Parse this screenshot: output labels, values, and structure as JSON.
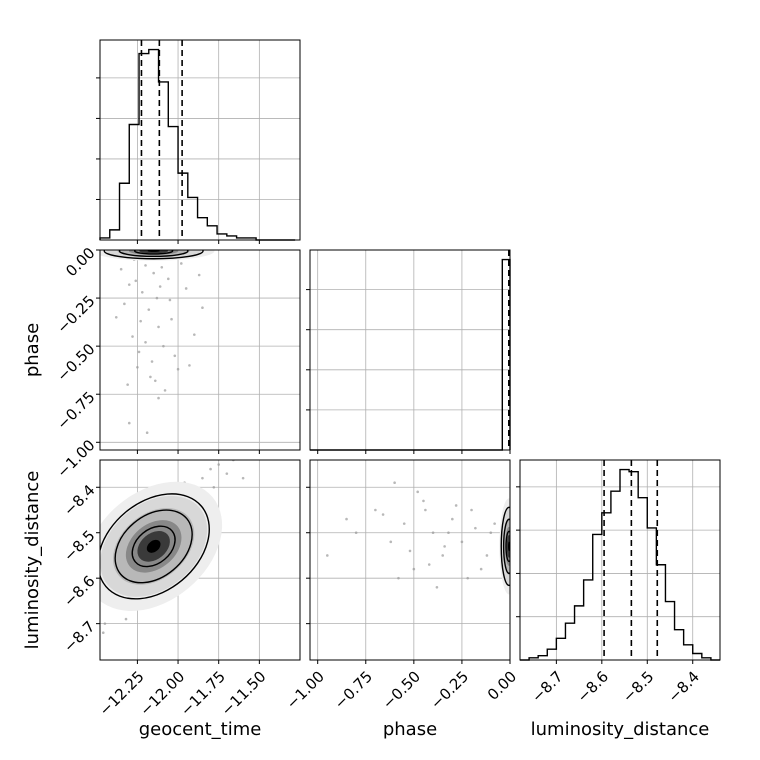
{
  "chart_data": {
    "type": "corner",
    "grid": true,
    "parameters": [
      {
        "name": "geocent_time",
        "range": [
          -12.48,
          -11.25
        ],
        "ticks": [
          -12.25,
          -12.0,
          -11.75,
          -11.5
        ],
        "tick_labels": [
          "−12.25",
          "−12.00",
          "−11.75",
          "−11.50"
        ],
        "quantiles": [
          -12.225,
          -12.115,
          -11.975
        ],
        "histogram": {
          "bin_edges": [
            -12.48,
            -12.42,
            -12.36,
            -12.3,
            -12.24,
            -12.18,
            -12.12,
            -12.06,
            -12.0,
            -11.94,
            -11.88,
            -11.82,
            -11.76,
            -11.7,
            -11.64,
            -11.58,
            -11.52,
            -11.46,
            -11.4,
            -11.34,
            -11.28
          ],
          "counts": [
            1,
            5,
            28,
            57,
            92,
            94,
            78,
            56,
            33,
            21,
            11,
            7,
            3,
            2,
            1,
            1,
            0,
            0,
            0,
            0
          ]
        }
      },
      {
        "name": "phase",
        "range": [
          -1.04,
          0.0
        ],
        "ticks": [
          -1.0,
          -0.75,
          -0.5,
          -0.25,
          0.0
        ],
        "tick_labels": [
          "−1.00",
          "−0.75",
          "−0.50",
          "−0.25",
          "0.00"
        ],
        "quantiles": [
          -0.002,
          -0.001,
          0.0
        ],
        "histogram": {
          "bin_edges": [
            -1.04,
            -0.99,
            -0.94,
            -0.89,
            -0.84,
            -0.79,
            -0.74,
            -0.69,
            -0.64,
            -0.59,
            -0.54,
            -0.49,
            -0.44,
            -0.39,
            -0.34,
            -0.29,
            -0.24,
            -0.19,
            -0.14,
            -0.09,
            -0.04,
            0.0
          ],
          "counts": [
            0,
            0,
            0,
            0,
            0,
            0,
            0,
            0,
            0,
            0,
            0,
            0,
            0,
            0,
            0,
            0,
            0,
            0,
            0,
            0,
            95
          ]
        }
      },
      {
        "name": "luminosity_distance",
        "range": [
          -8.78,
          -8.34
        ],
        "ticks": [
          -8.7,
          -8.6,
          -8.5,
          -8.4
        ],
        "tick_labels": [
          "−8.7",
          "−8.6",
          "−8.5",
          "−8.4"
        ],
        "quantiles": [
          -8.595,
          -8.535,
          -8.478
        ],
        "histogram": {
          "bin_edges": [
            -8.78,
            -8.76,
            -8.74,
            -8.72,
            -8.7,
            -8.68,
            -8.66,
            -8.64,
            -8.62,
            -8.6,
            -8.58,
            -8.56,
            -8.54,
            -8.52,
            -8.5,
            -8.48,
            -8.46,
            -8.44,
            -8.42,
            -8.4,
            -8.38,
            -8.36,
            -8.34
          ],
          "counts": [
            0,
            1,
            2,
            5,
            10,
            17,
            25,
            37,
            58,
            68,
            78,
            88,
            87,
            75,
            61,
            44,
            27,
            14,
            7,
            3,
            1,
            0
          ]
        }
      }
    ],
    "pairs": [
      {
        "x": "geocent_time",
        "y": "phase",
        "points": [
          [
            -12.35,
            -0.1
          ],
          [
            -12.3,
            -0.18
          ],
          [
            -12.27,
            -0.05
          ],
          [
            -12.22,
            -0.22
          ],
          [
            -12.18,
            -0.31
          ],
          [
            -12.15,
            -0.12
          ],
          [
            -12.12,
            -0.4
          ],
          [
            -12.1,
            -0.09
          ],
          [
            -12.05,
            -0.26
          ],
          [
            -12.02,
            -0.55
          ],
          [
            -12.2,
            -0.48
          ],
          [
            -12.25,
            -0.61
          ],
          [
            -12.14,
            -0.68
          ],
          [
            -12.08,
            -0.73
          ],
          [
            -12.3,
            -0.9
          ],
          [
            -12.19,
            -0.95
          ],
          [
            -11.95,
            -0.2
          ],
          [
            -11.9,
            -0.44
          ],
          [
            -12.38,
            -0.35
          ],
          [
            -12.06,
            -0.15
          ],
          [
            -12.23,
            -0.37
          ],
          [
            -12.16,
            -0.58
          ],
          [
            -12.11,
            -0.19
          ],
          [
            -11.98,
            -0.07
          ],
          [
            -12.28,
            -0.45
          ],
          [
            -12.13,
            -0.25
          ],
          [
            -12.0,
            -0.62
          ],
          [
            -12.2,
            -0.08
          ],
          [
            -12.09,
            -0.5
          ],
          [
            -12.33,
            -0.28
          ],
          [
            -11.87,
            -0.13
          ],
          [
            -12.04,
            -0.36
          ],
          [
            -12.17,
            -0.66
          ],
          [
            -12.26,
            -0.16
          ],
          [
            -11.93,
            -0.6
          ],
          [
            -12.12,
            -0.77
          ],
          [
            -12.24,
            -0.53
          ],
          [
            -12.07,
            -0.04
          ],
          [
            -12.31,
            -0.7
          ],
          [
            -11.85,
            -0.3
          ]
        ],
        "density_peak": [
          -12.15,
          -0.005
        ]
      },
      {
        "x": "geocent_time",
        "y": "luminosity_distance",
        "points": [
          [
            -12.3,
            -8.6
          ],
          [
            -12.2,
            -8.55
          ],
          [
            -12.15,
            -8.52
          ],
          [
            -12.1,
            -8.5
          ],
          [
            -12.05,
            -8.47
          ],
          [
            -12.0,
            -8.45
          ],
          [
            -11.95,
            -8.42
          ],
          [
            -11.9,
            -8.4
          ],
          [
            -12.35,
            -8.65
          ],
          [
            -12.25,
            -8.58
          ],
          [
            -11.85,
            -8.38
          ],
          [
            -11.8,
            -8.36
          ],
          [
            -12.4,
            -8.66
          ],
          [
            -12.45,
            -8.7
          ],
          [
            -11.75,
            -8.35
          ],
          [
            -11.7,
            -8.37
          ],
          [
            -12.18,
            -8.48
          ],
          [
            -12.08,
            -8.56
          ],
          [
            -11.98,
            -8.5
          ],
          [
            -12.28,
            -8.52
          ],
          [
            -12.22,
            -8.62
          ],
          [
            -12.12,
            -8.44
          ],
          [
            -11.92,
            -8.47
          ],
          [
            -12.02,
            -8.41
          ],
          [
            -12.32,
            -8.69
          ],
          [
            -12.38,
            -8.58
          ],
          [
            -11.82,
            -8.43
          ],
          [
            -12.14,
            -8.6
          ],
          [
            -12.24,
            -8.47
          ],
          [
            -12.04,
            -8.53
          ],
          [
            -11.88,
            -8.33
          ],
          [
            -11.78,
            -8.4
          ],
          [
            -12.42,
            -8.62
          ],
          [
            -12.34,
            -8.55
          ],
          [
            -11.96,
            -8.39
          ],
          [
            -12.06,
            -8.63
          ],
          [
            -12.16,
            -8.66
          ],
          [
            -11.66,
            -8.34
          ],
          [
            -11.6,
            -8.38
          ],
          [
            -12.46,
            -8.72
          ]
        ],
        "density_peak": [
          -12.15,
          -8.53
        ]
      },
      {
        "x": "phase",
        "y": "luminosity_distance",
        "points": [
          [
            -0.95,
            -8.55
          ],
          [
            -0.8,
            -8.5
          ],
          [
            -0.7,
            -8.45
          ],
          [
            -0.62,
            -8.52
          ],
          [
            -0.55,
            -8.48
          ],
          [
            -0.5,
            -8.58
          ],
          [
            -0.45,
            -8.43
          ],
          [
            -0.4,
            -8.5
          ],
          [
            -0.35,
            -8.55
          ],
          [
            -0.3,
            -8.47
          ],
          [
            -0.25,
            -8.52
          ],
          [
            -0.2,
            -8.45
          ],
          [
            -0.15,
            -8.58
          ],
          [
            -0.1,
            -8.5
          ],
          [
            -0.58,
            -8.6
          ],
          [
            -0.48,
            -8.41
          ],
          [
            -0.38,
            -8.62
          ],
          [
            -0.28,
            -8.44
          ],
          [
            -0.18,
            -8.49
          ],
          [
            -0.12,
            -8.55
          ],
          [
            -0.66,
            -8.46
          ],
          [
            -0.52,
            -8.54
          ],
          [
            -0.42,
            -8.57
          ],
          [
            -0.32,
            -8.5
          ],
          [
            -0.22,
            -8.6
          ],
          [
            -0.85,
            -8.47
          ],
          [
            -0.6,
            -8.39
          ],
          [
            -0.44,
            -8.45
          ],
          [
            -0.34,
            -8.53
          ],
          [
            -0.08,
            -8.48
          ]
        ],
        "density_peak": [
          -0.005,
          -8.53
        ]
      }
    ]
  }
}
